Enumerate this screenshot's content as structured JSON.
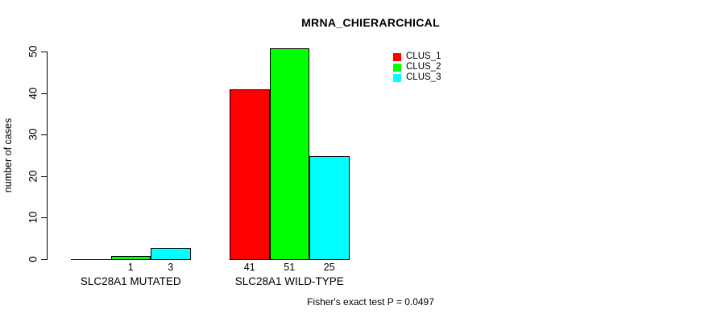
{
  "chart_data": {
    "type": "bar",
    "title": "MRNA_CHIERARCHICAL",
    "ylabel": "number of cases",
    "xlabel": "",
    "ylim": [
      0,
      50
    ],
    "yticks": [
      0,
      10,
      20,
      30,
      40,
      50
    ],
    "grid": false,
    "legend_position": "top-right",
    "categories": [
      "SLC28A1 MUTATED",
      "SLC28A1 WILD-TYPE"
    ],
    "series": [
      {
        "name": "CLUS_1",
        "color": "#ff0000",
        "values": [
          0,
          41
        ]
      },
      {
        "name": "CLUS_2",
        "color": "#00ff00",
        "values": [
          1,
          51
        ]
      },
      {
        "name": "CLUS_3",
        "color": "#00ffff",
        "values": [
          3,
          25
        ]
      }
    ],
    "bar_value_labels": [
      [
        "",
        "1",
        "3"
      ],
      [
        "41",
        "51",
        "25"
      ]
    ],
    "footnote": "Fisher's exact test P = 0.0497"
  }
}
